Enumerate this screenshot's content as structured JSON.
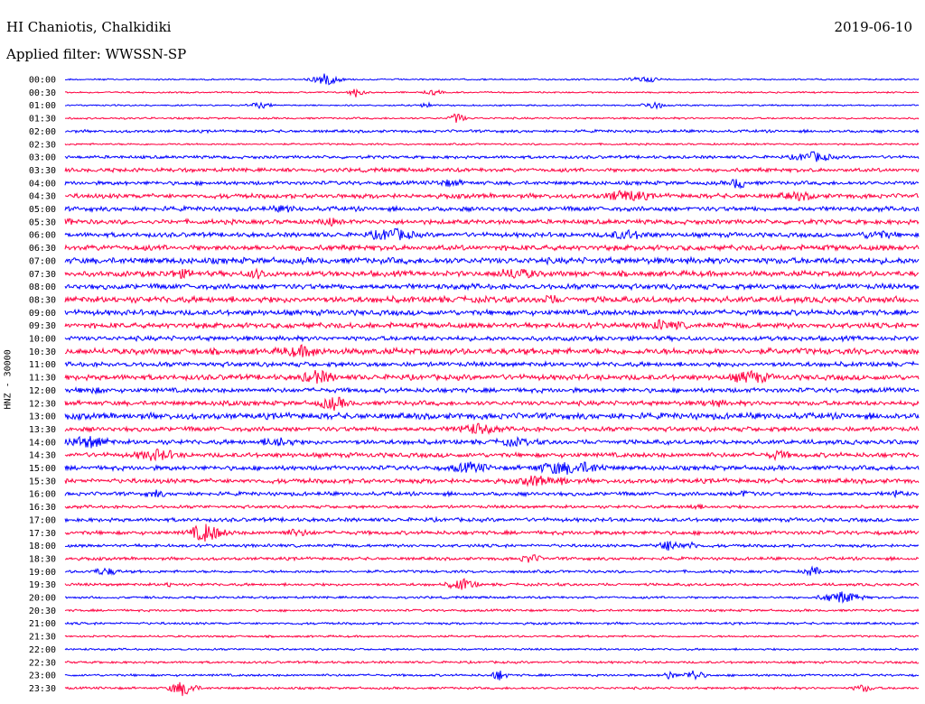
{
  "header": {
    "station": "HI Chaniotis, Chalkidiki",
    "date": "2019-06-10",
    "filter": "Applied filter: WWSSN-SP"
  },
  "chart_data": {
    "type": "line",
    "ylabel": "HNZ - 30000",
    "tick_labels": [
      "00:00",
      "00:30",
      "01:00",
      "01:30",
      "02:00",
      "02:30",
      "03:00",
      "03:30",
      "04:00",
      "04:30",
      "05:00",
      "05:30",
      "06:00",
      "06:30",
      "07:00",
      "07:30",
      "08:00",
      "08:30",
      "09:00",
      "09:30",
      "10:00",
      "10:30",
      "11:00",
      "11:30",
      "12:00",
      "12:30",
      "13:00",
      "13:30",
      "14:00",
      "14:30",
      "15:00",
      "15:30",
      "16:00",
      "16:30",
      "17:00",
      "17:30",
      "18:00",
      "18:30",
      "19:00",
      "19:30",
      "20:00",
      "20:30",
      "21:00",
      "21:30",
      "22:00",
      "22:30",
      "23:00",
      "23:30"
    ],
    "trace_noise_levels": [
      1,
      1,
      1,
      1.2,
      1.8,
      1.2,
      2,
      2.5,
      2.5,
      3,
      3,
      3,
      3,
      3.5,
      4,
      3.5,
      3.5,
      4,
      3.5,
      3.5,
      3,
      4,
      3,
      3.5,
      3,
      3,
      4,
      3,
      3,
      3,
      3,
      3,
      2.5,
      2,
      2.5,
      2.5,
      2,
      2,
      1.8,
      1.8,
      1.5,
      1.5,
      1.5,
      1.3,
      1.3,
      1.5,
      1.5,
      1.5
    ],
    "colors": [
      "#0000ff",
      "#ff0040"
    ],
    "row_minutes": 30
  }
}
